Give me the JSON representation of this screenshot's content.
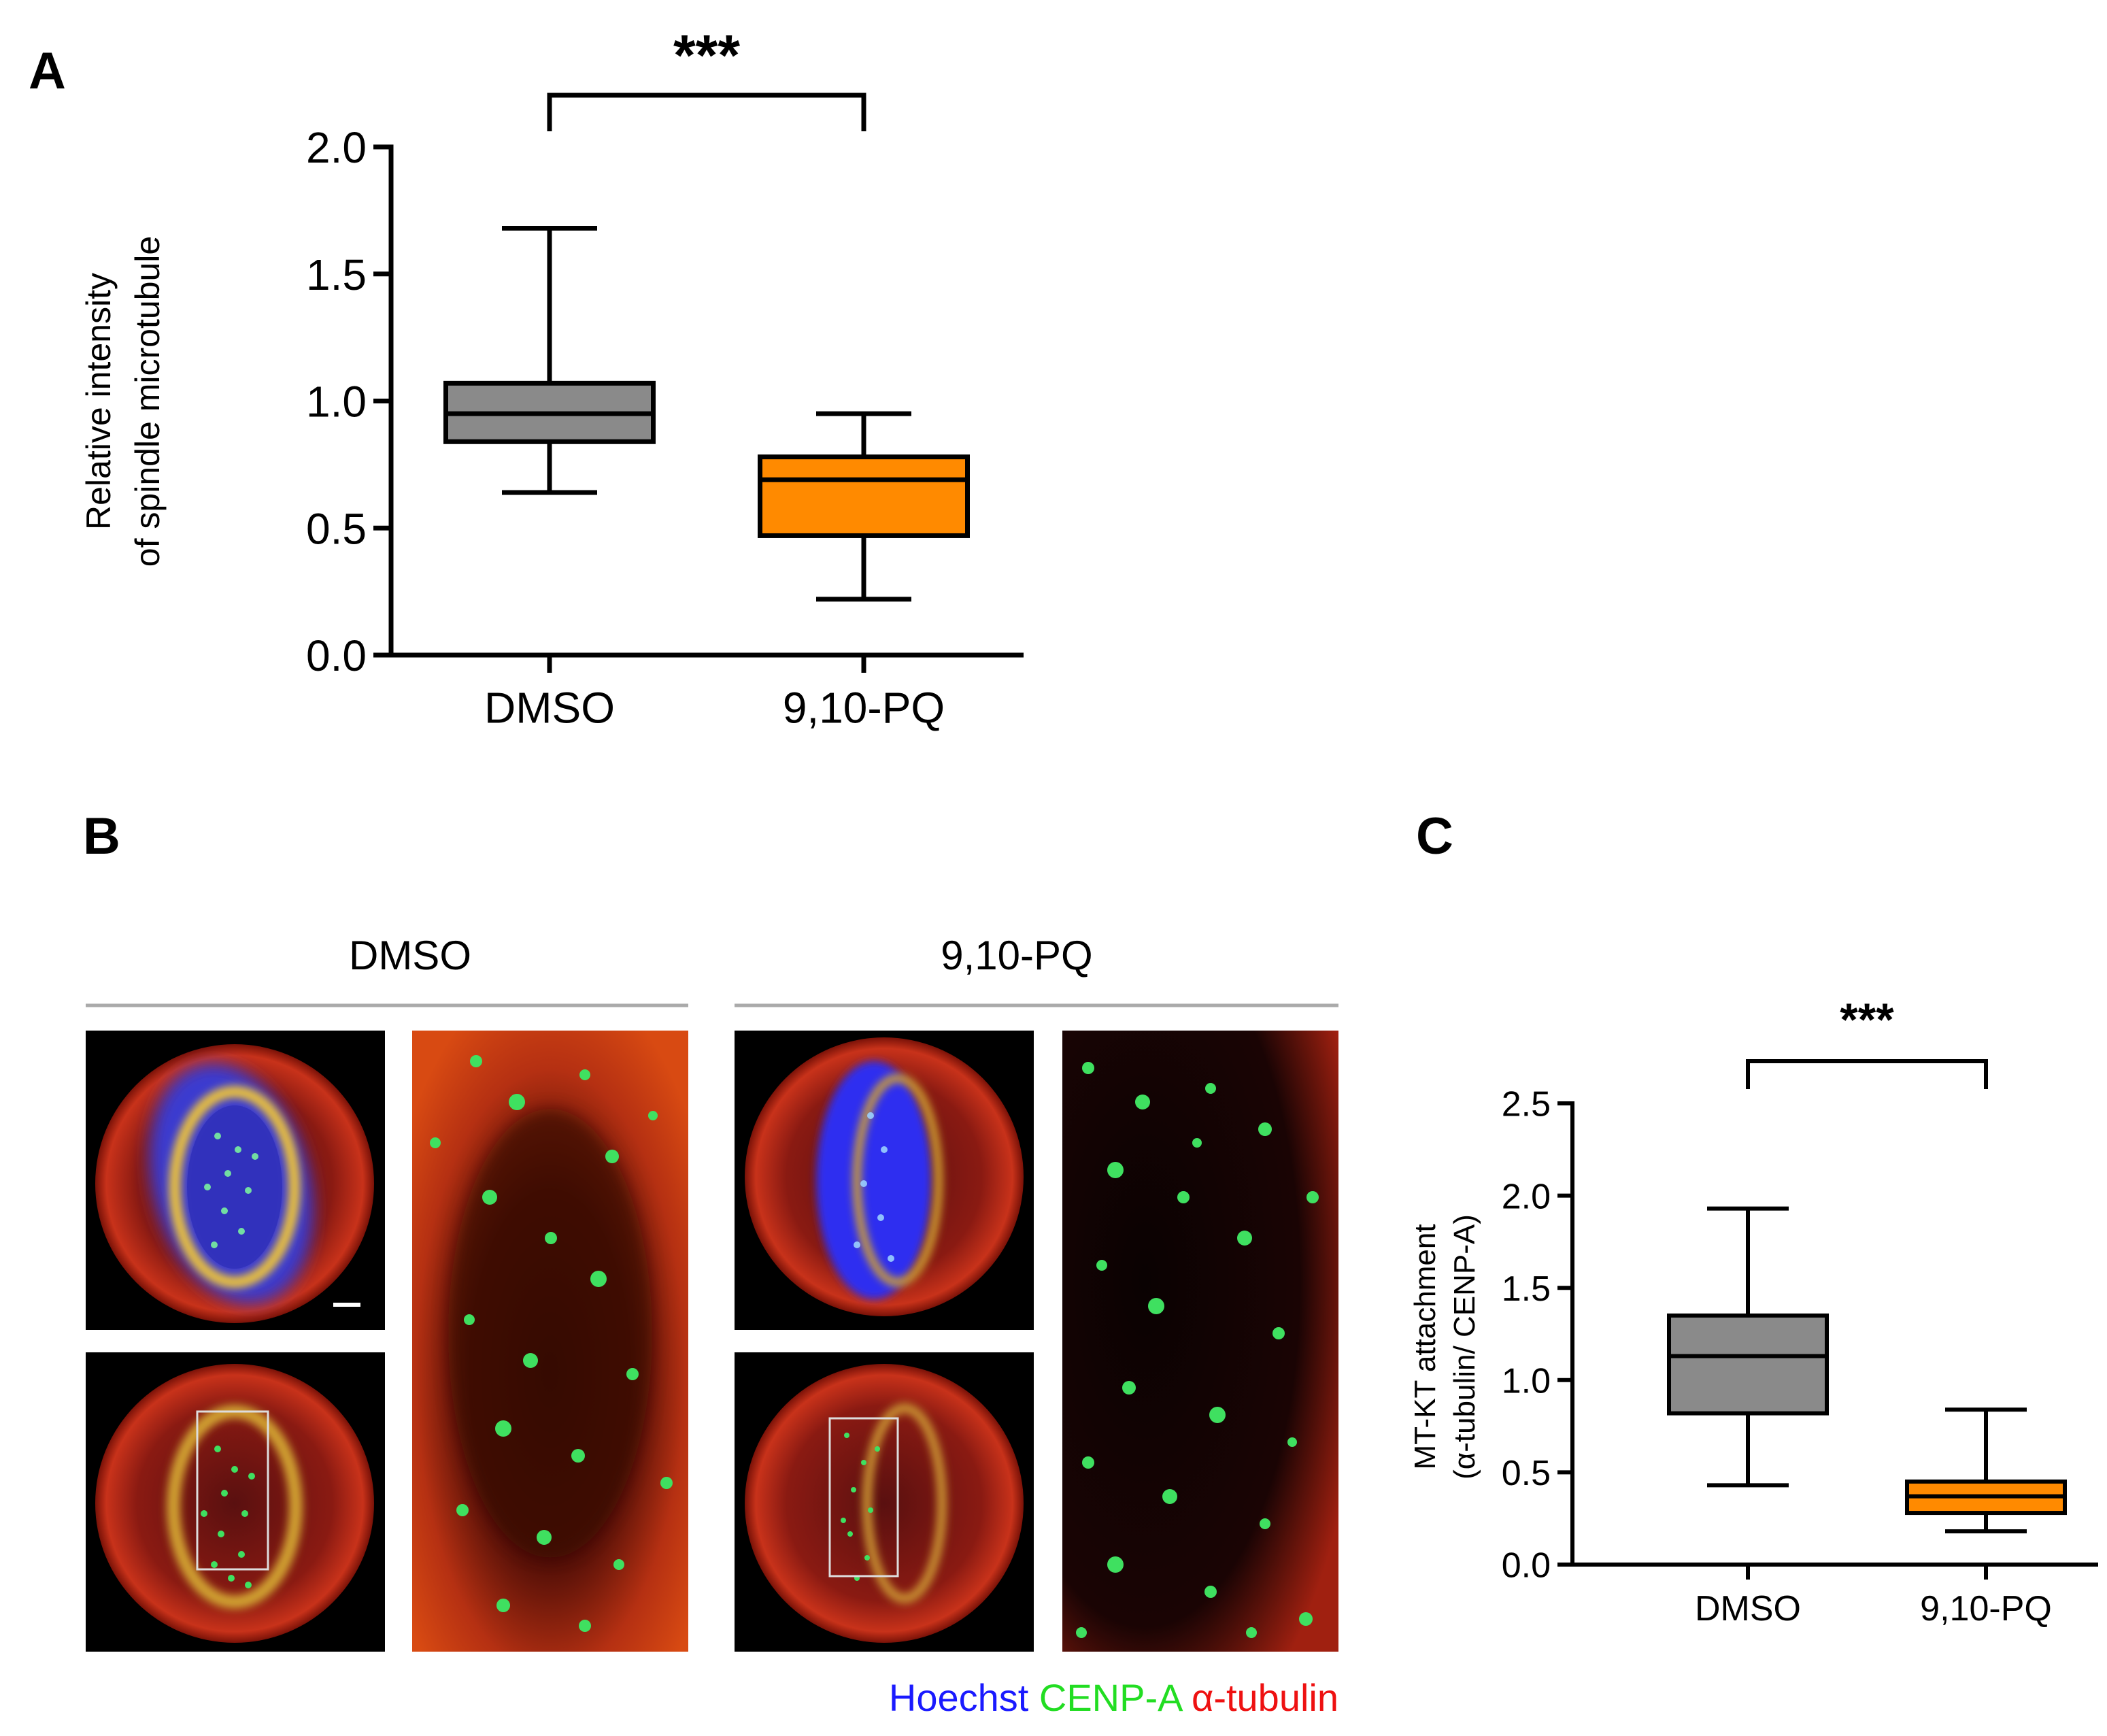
{
  "panel_labels": {
    "a": "A",
    "b": "B",
    "c": "C"
  },
  "panel_b": {
    "groups": [
      {
        "label": "DMSO"
      },
      {
        "label": "9,10-PQ"
      }
    ],
    "legend": [
      {
        "text": "Hoechst",
        "color": "#1a1aff"
      },
      {
        "text": "CENP-A",
        "color": "#22dd22"
      },
      {
        "text": "α-tubulin",
        "color": "#ee1111"
      }
    ]
  },
  "colors": {
    "dmso": "#8a8a8a",
    "pq": "#ff8a00",
    "axis": "#000000"
  },
  "chart_data": [
    {
      "id": "A",
      "type": "box",
      "title": "",
      "xlabel": "",
      "ylabel_lines": [
        "Relative intensity",
        "of spindle microtubule"
      ],
      "ylim": [
        0,
        2.0
      ],
      "yticks": [
        0,
        0.5,
        1.0,
        1.5,
        2.0
      ],
      "ytick_labels": [
        "0.0",
        "0.5",
        "1.0",
        "1.5",
        "2.0"
      ],
      "categories": [
        "DMSO",
        "9,10-PQ"
      ],
      "boxes": [
        {
          "name": "DMSO",
          "min": 0.64,
          "q1": 0.84,
          "median": 0.95,
          "q3": 1.07,
          "max": 1.68,
          "color": "#8a8a8a"
        },
        {
          "name": "9,10-PQ",
          "min": 0.22,
          "q1": 0.47,
          "median": 0.69,
          "q3": 0.78,
          "max": 0.95,
          "color": "#ff8a00"
        }
      ],
      "significance": {
        "text": "***",
        "between": [
          0,
          1
        ]
      }
    },
    {
      "id": "C",
      "type": "box",
      "title": "",
      "xlabel": "",
      "ylabel_lines": [
        "MT-KT attachment",
        "(α-tubulin/ CENP-A)"
      ],
      "ylim": [
        0,
        2.5
      ],
      "yticks": [
        0,
        0.5,
        1.0,
        1.5,
        2.0,
        2.5
      ],
      "ytick_labels": [
        "0.0",
        "0.5",
        "1.0",
        "1.5",
        "2.0",
        "2.5"
      ],
      "categories": [
        "DMSO",
        "9,10-PQ"
      ],
      "boxes": [
        {
          "name": "DMSO",
          "min": 0.43,
          "q1": 0.82,
          "median": 1.13,
          "q3": 1.35,
          "max": 1.93,
          "color": "#8a8a8a"
        },
        {
          "name": "9,10-PQ",
          "min": 0.18,
          "q1": 0.28,
          "median": 0.37,
          "q3": 0.45,
          "max": 0.84,
          "color": "#ff8a00"
        }
      ],
      "significance": {
        "text": "***",
        "between": [
          0,
          1
        ]
      }
    }
  ]
}
